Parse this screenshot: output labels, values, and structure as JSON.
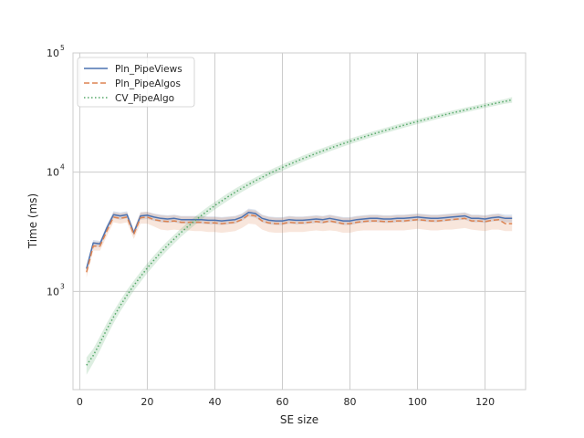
{
  "chart_data": {
    "type": "line",
    "title": "",
    "xlabel": "SE size",
    "ylabel": "Time (ms)",
    "x_scale": "linear",
    "y_scale": "log",
    "xlim": [
      -2,
      132
    ],
    "ylim": [
      150,
      100000
    ],
    "x_ticks": [
      0,
      20,
      40,
      60,
      80,
      100,
      120
    ],
    "y_ticks": [
      {
        "value": 1000,
        "base": "10",
        "exp": "3"
      },
      {
        "value": 10000,
        "base": "10",
        "exp": "4"
      },
      {
        "value": 100000,
        "base": "10",
        "exp": "5"
      }
    ],
    "grid": true,
    "legend": "top-left",
    "x": [
      2,
      4,
      6,
      8,
      10,
      12,
      14,
      16,
      18,
      20,
      22,
      24,
      26,
      28,
      30,
      32,
      34,
      36,
      38,
      40,
      42,
      44,
      46,
      48,
      50,
      52,
      54,
      56,
      58,
      60,
      62,
      64,
      66,
      68,
      70,
      72,
      74,
      76,
      78,
      80,
      82,
      84,
      86,
      88,
      90,
      92,
      94,
      96,
      98,
      100,
      102,
      104,
      106,
      108,
      110,
      112,
      114,
      116,
      118,
      120,
      122,
      124,
      126,
      128
    ],
    "series": [
      {
        "name": "Pln_PipeViews",
        "color": "#4c72b0",
        "style": "solid",
        "values": [
          1550,
          2550,
          2500,
          3400,
          4400,
          4300,
          4400,
          3100,
          4300,
          4350,
          4200,
          4100,
          4050,
          4100,
          4000,
          4000,
          4000,
          4000,
          3950,
          3950,
          3900,
          3950,
          4000,
          4200,
          4600,
          4500,
          4100,
          3950,
          3900,
          3900,
          4000,
          3950,
          3950,
          4000,
          4050,
          4000,
          4100,
          4000,
          3900,
          3900,
          4000,
          4050,
          4100,
          4100,
          4050,
          4050,
          4100,
          4100,
          4150,
          4200,
          4150,
          4100,
          4100,
          4150,
          4200,
          4250,
          4300,
          4100,
          4100,
          4050,
          4150,
          4200,
          4100,
          4100
        ],
        "band_low": [
          1450,
          2400,
          2350,
          3200,
          4100,
          4000,
          4100,
          2950,
          4000,
          4050,
          3900,
          3800,
          3750,
          3800,
          3700,
          3700,
          3700,
          3700,
          3650,
          3650,
          3600,
          3650,
          3700,
          3900,
          4250,
          4150,
          3800,
          3650,
          3600,
          3600,
          3700,
          3650,
          3650,
          3700,
          3750,
          3700,
          3800,
          3700,
          3600,
          3600,
          3700,
          3750,
          3800,
          3800,
          3750,
          3750,
          3800,
          3800,
          3850,
          3900,
          3850,
          3800,
          3800,
          3850,
          3900,
          3950,
          4000,
          3800,
          3800,
          3750,
          3850,
          3900,
          3800,
          3800
        ],
        "band_high": [
          1650,
          2700,
          2650,
          3600,
          4700,
          4600,
          4700,
          3250,
          4600,
          4650,
          4500,
          4400,
          4350,
          4400,
          4300,
          4300,
          4300,
          4300,
          4250,
          4250,
          4200,
          4250,
          4300,
          4500,
          4950,
          4850,
          4400,
          4250,
          4200,
          4200,
          4300,
          4250,
          4250,
          4300,
          4350,
          4300,
          4400,
          4300,
          4200,
          4200,
          4300,
          4350,
          4400,
          4400,
          4350,
          4350,
          4400,
          4400,
          4450,
          4500,
          4450,
          4400,
          4400,
          4450,
          4500,
          4550,
          4600,
          4400,
          4400,
          4350,
          4450,
          4500,
          4400,
          4400
        ]
      },
      {
        "name": "Pln_PipeAlgos",
        "color": "#dd8452",
        "style": "dashed",
        "values": [
          1450,
          2400,
          2400,
          3200,
          4200,
          4100,
          4200,
          3000,
          4150,
          4200,
          4000,
          3900,
          3850,
          3900,
          3800,
          3800,
          3800,
          3800,
          3750,
          3750,
          3700,
          3750,
          3800,
          4000,
          4400,
          4300,
          3900,
          3750,
          3700,
          3700,
          3800,
          3750,
          3750,
          3800,
          3850,
          3800,
          3900,
          3800,
          3700,
          3700,
          3800,
          3850,
          3900,
          3900,
          3850,
          3850,
          3900,
          3900,
          3950,
          4000,
          3950,
          3900,
          3900,
          3950,
          4000,
          4050,
          4100,
          3900,
          3900,
          3850,
          3950,
          4000,
          3700,
          3700
        ],
        "band_low": [
          1300,
          2200,
          2200,
          2900,
          3800,
          3700,
          3800,
          2750,
          3700,
          3700,
          3500,
          3300,
          3250,
          3300,
          3250,
          3250,
          3200,
          3200,
          3150,
          3150,
          3100,
          3150,
          3200,
          3400,
          3700,
          3650,
          3300,
          3150,
          3100,
          3100,
          3150,
          3150,
          3150,
          3200,
          3250,
          3200,
          3250,
          3200,
          3100,
          3100,
          3200,
          3250,
          3250,
          3250,
          3250,
          3250,
          3250,
          3250,
          3300,
          3350,
          3300,
          3250,
          3250,
          3300,
          3300,
          3350,
          3400,
          3300,
          3250,
          3200,
          3300,
          3300,
          3200,
          3200
        ],
        "band_high": [
          1600,
          2600,
          2600,
          3500,
          4600,
          4500,
          4600,
          3300,
          4600,
          4650,
          4450,
          4350,
          4300,
          4350,
          4250,
          4250,
          4250,
          4250,
          4200,
          4200,
          4150,
          4200,
          4250,
          4450,
          4850,
          4750,
          4350,
          4200,
          4150,
          4150,
          4250,
          4200,
          4200,
          4250,
          4300,
          4250,
          4350,
          4250,
          4150,
          4150,
          4250,
          4300,
          4350,
          4350,
          4300,
          4300,
          4350,
          4350,
          4400,
          4450,
          4400,
          4350,
          4350,
          4400,
          4450,
          4500,
          4550,
          4350,
          4350,
          4300,
          4400,
          4450,
          4250,
          4250
        ]
      },
      {
        "name": "CV_PipeAlgo",
        "color": "#55a868",
        "style": "dotted",
        "values": [
          240,
          290,
          370,
          480,
          610,
          760,
          930,
          1120,
          1330,
          1570,
          1830,
          2120,
          2430,
          2760,
          3120,
          3500,
          3900,
          4330,
          4780,
          5250,
          5740,
          6250,
          6780,
          7330,
          7890,
          8470,
          9070,
          9680,
          10310,
          10950,
          11610,
          12280,
          12970,
          13660,
          14380,
          15100,
          15840,
          16590,
          17350,
          18130,
          18920,
          19720,
          20540,
          21360,
          22200,
          23050,
          23920,
          24790,
          25680,
          26580,
          27490,
          28410,
          29340,
          30290,
          31250,
          32210,
          33190,
          34180,
          35190,
          36200,
          37220,
          38260,
          39300,
          40400
        ],
        "band_low": [
          200,
          250,
          320,
          420,
          540,
          680,
          830,
          1010,
          1200,
          1420,
          1660,
          1930,
          2220,
          2530,
          2870,
          3220,
          3600,
          4000,
          4420,
          4860,
          5320,
          5800,
          6300,
          6820,
          7350,
          7900,
          8470,
          9050,
          9650,
          10260,
          10890,
          11530,
          12190,
          12850,
          13540,
          14230,
          14940,
          15660,
          16390,
          17140,
          17900,
          18670,
          19460,
          20250,
          21060,
          21880,
          22710,
          23560,
          24410,
          25280,
          26160,
          27050,
          27950,
          28870,
          29790,
          30720,
          31670,
          32620,
          33590,
          34560,
          35550,
          36550,
          37550,
          38200
        ],
        "band_high": [
          280,
          330,
          420,
          540,
          680,
          840,
          1030,
          1230,
          1460,
          1720,
          2000,
          2310,
          2640,
          2990,
          3370,
          3780,
          4200,
          4660,
          5140,
          5640,
          6160,
          6700,
          7260,
          7840,
          8430,
          9040,
          9670,
          10310,
          10970,
          11640,
          12330,
          13030,
          13750,
          14470,
          15220,
          15970,
          16740,
          17520,
          18310,
          19120,
          19940,
          20770,
          21620,
          22470,
          23340,
          24220,
          25130,
          26020,
          26950,
          27880,
          28820,
          29770,
          30730,
          31710,
          32710,
          33700,
          34710,
          35740,
          36790,
          37840,
          38890,
          39970,
          41050,
          42600
        ]
      }
    ]
  }
}
